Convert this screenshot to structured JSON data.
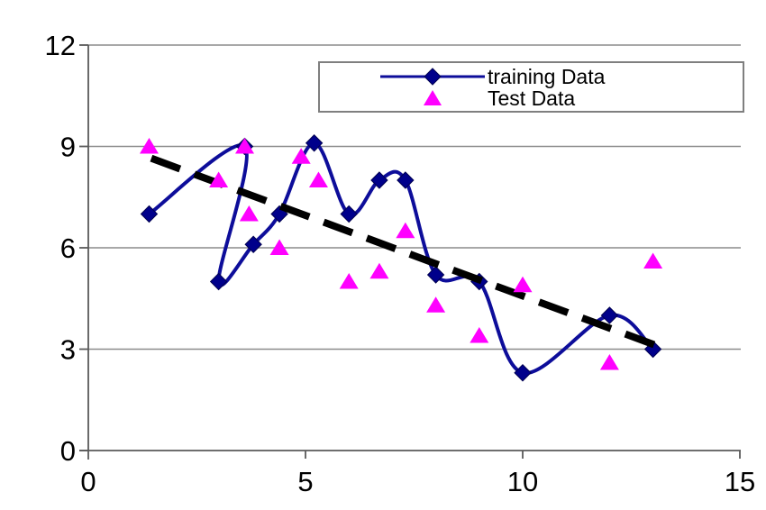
{
  "chart_data": {
    "type": "line",
    "subtype": "scatter-with-smoothed-line-and-trendline",
    "title": "",
    "xlabel": "",
    "ylabel": "",
    "x_axis": {
      "range": [
        0,
        15
      ],
      "ticks": [
        "0",
        "5",
        "10",
        "15"
      ],
      "tick_values": [
        0,
        5,
        10,
        15
      ]
    },
    "y_axis": {
      "range": [
        0,
        12
      ],
      "ticks": [
        "0",
        "3",
        "6",
        "9",
        "12"
      ],
      "tick_values": [
        0,
        3,
        6,
        9,
        12
      ]
    },
    "grid": "horizontal-gridlines-on",
    "legend_position": "top-right-inside",
    "series": [
      {
        "name": "training Data",
        "type": "smoothed-line-with-markers",
        "marker": "diamond",
        "color": "#0d0d9a",
        "marker_color": "#00008b",
        "points": [
          [
            1.4,
            7.0
          ],
          [
            3.6,
            9.0
          ],
          [
            3.0,
            5.0
          ],
          [
            3.8,
            6.1
          ],
          [
            4.4,
            7.0
          ],
          [
            5.2,
            9.1
          ],
          [
            6.0,
            7.0
          ],
          [
            6.7,
            8.0
          ],
          [
            7.3,
            8.0
          ],
          [
            8.0,
            5.2
          ],
          [
            9.0,
            5.0
          ],
          [
            10.0,
            2.3
          ],
          [
            12.0,
            4.0
          ],
          [
            13.0,
            3.0
          ]
        ]
      },
      {
        "name": "Test Data",
        "type": "scatter",
        "marker": "triangle",
        "color": "#ff00ff",
        "points": [
          [
            1.4,
            9.0
          ],
          [
            3.0,
            8.0
          ],
          [
            3.6,
            9.0
          ],
          [
            3.7,
            7.0
          ],
          [
            4.4,
            6.0
          ],
          [
            4.9,
            8.7
          ],
          [
            5.3,
            8.0
          ],
          [
            6.0,
            5.0
          ],
          [
            6.7,
            5.3
          ],
          [
            7.3,
            6.5
          ],
          [
            8.0,
            4.3
          ],
          [
            9.0,
            3.4
          ],
          [
            10.0,
            4.9
          ],
          [
            12.0,
            2.6
          ],
          [
            13.0,
            5.6
          ]
        ]
      },
      {
        "name": "trendline",
        "type": "dashed-straight-line",
        "marker": "none",
        "color": "#000000",
        "points": [
          [
            1.45,
            8.65
          ],
          [
            13.2,
            3.05
          ]
        ]
      }
    ]
  },
  "legend": {
    "items": [
      {
        "label": "training Data",
        "marker": "diamond-on-line"
      },
      {
        "label": "Test Data",
        "marker": "triangle"
      }
    ]
  },
  "colors": {
    "training_line": "#0d0d9a",
    "training_marker": "#00008b",
    "test_marker": "#ff00ff",
    "trendline": "#000000",
    "gridline": "#8c8c8c",
    "axis": "#5a5a5a",
    "tick_text": "#000000",
    "legend_border": "#7f7f7f",
    "background": "#ffffff"
  }
}
